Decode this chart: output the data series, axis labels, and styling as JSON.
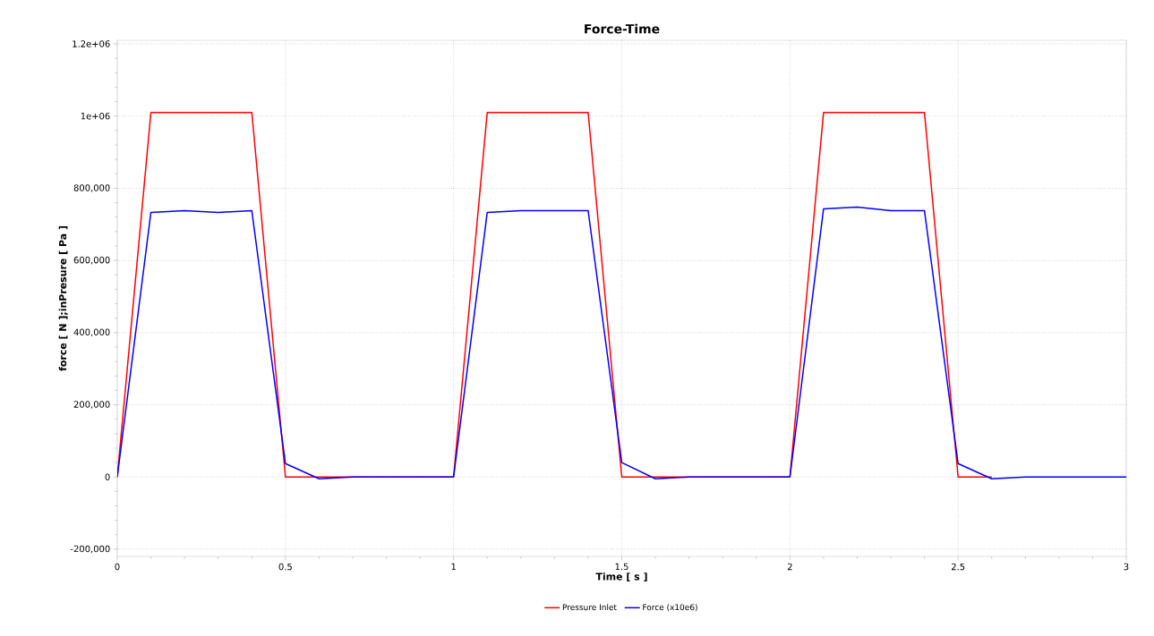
{
  "chart_data": {
    "type": "line",
    "title": "Force-Time",
    "xlabel": "Time [ s ]",
    "ylabel": "force [ N ];inPresure [ Pa ]",
    "x": [
      0,
      0.1,
      0.2,
      0.3,
      0.4,
      0.5,
      0.6,
      0.7,
      0.8,
      0.9,
      1.0,
      1.1,
      1.2,
      1.3,
      1.4,
      1.5,
      1.6,
      1.7,
      1.8,
      1.9,
      2.0,
      2.1,
      2.2,
      2.3,
      2.4,
      2.5,
      2.6,
      2.7,
      2.8,
      2.9,
      3.0
    ],
    "series": [
      {
        "name": "Pressure Inlet",
        "color": "#ff0000",
        "values": [
          0,
          1010000,
          1010000,
          1010000,
          1010000,
          0,
          0,
          null,
          null,
          null,
          0,
          1010000,
          1010000,
          1010000,
          1010000,
          0,
          0,
          null,
          null,
          null,
          0,
          1010000,
          1010000,
          1010000,
          1010000,
          0,
          0,
          null,
          null,
          null,
          null
        ]
      },
      {
        "name": "Force (x10e6)",
        "color": "#0000ff",
        "values": [
          0,
          733000,
          738000,
          733000,
          738000,
          37000,
          -5000,
          0,
          0,
          0,
          0,
          733000,
          738000,
          738000,
          738000,
          40000,
          -5000,
          0,
          0,
          0,
          0,
          743000,
          748000,
          738000,
          738000,
          37000,
          -5000,
          0,
          0,
          0,
          0
        ]
      }
    ],
    "xlim": [
      0,
      3
    ],
    "xticks": [
      0,
      0.5,
      1,
      1.5,
      2,
      2.5,
      3
    ],
    "ylim": [
      -220000,
      1210000
    ],
    "yticks": [
      {
        "value": -200000,
        "label": "-200,000"
      },
      0,
      {
        "value": 200000,
        "label": "200,000"
      },
      {
        "value": 400000,
        "label": "400,000"
      },
      {
        "value": 600000,
        "label": "600,000"
      },
      {
        "value": 800000,
        "label": "800,000"
      },
      {
        "value": 1000000,
        "label": "1e+06"
      },
      {
        "value": 1200000,
        "label": "1.2e+06"
      }
    ],
    "grid": true,
    "legend": "bottom"
  }
}
